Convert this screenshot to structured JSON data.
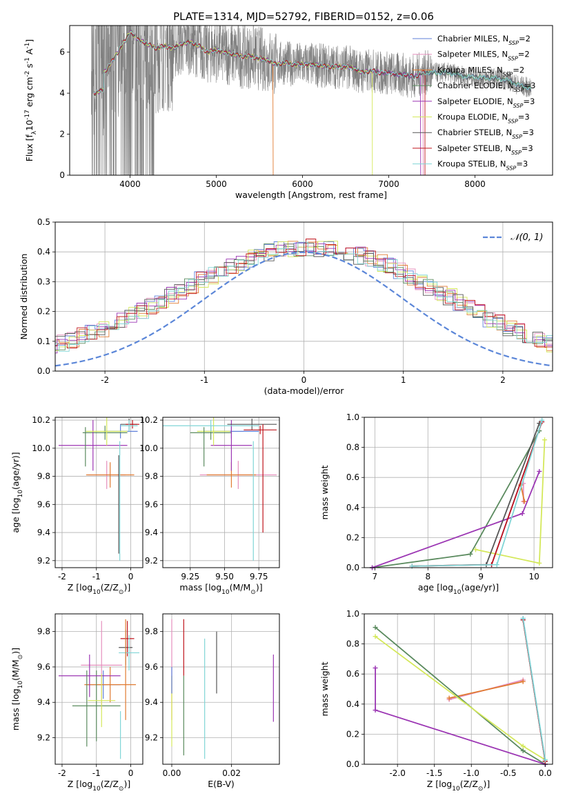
{
  "figure": {
    "title": "PLATE=1314, MJD=52792, FIBERID=0152, z=0.06"
  },
  "models": [
    {
      "name": "Chabrier MILES, N$_{SSP}$=2",
      "label": "Chabrier MILES, N",
      "sub": "SSP",
      "n": "=2",
      "color": "#5e7fd9"
    },
    {
      "name": "Salpeter MILES, N$_{SSP}$=2",
      "label": "Salpeter MILES, N",
      "sub": "SSP",
      "n": "=2",
      "color": "#e58fbd"
    },
    {
      "name": "Kroupa MILES, N$_{SSP}$=2",
      "label": "Kroupa MILES, N",
      "sub": "SSP",
      "n": "=2",
      "color": "#e07a30"
    },
    {
      "name": "Chabrier ELODIE, N$_{SSP}$=3",
      "label": "Chabrier ELODIE, N",
      "sub": "SSP",
      "n": "=3",
      "color": "#5a8a5e"
    },
    {
      "name": "Salpeter ELODIE, N$_{SSP}$=3",
      "label": "Salpeter ELODIE, N",
      "sub": "SSP",
      "n": "=3",
      "color": "#9b35b3"
    },
    {
      "name": "Kroupa ELODIE, N$_{SSP}$=3",
      "label": "Kroupa ELODIE, N",
      "sub": "SSP",
      "n": "=3",
      "color": "#d4e85a"
    },
    {
      "name": "Chabrier STELIB, N$_{SSP}$=3",
      "label": "Chabrier STELIB, N",
      "sub": "SSP",
      "n": "=3",
      "color": "#555555"
    },
    {
      "name": "Salpeter STELIB, N$_{SSP}$=3",
      "label": "Salpeter STELIB, N",
      "sub": "SSP",
      "n": "=3",
      "color": "#c0141c"
    },
    {
      "name": "Kroupa STELIB, N$_{SSP}$=3",
      "label": "Kroupa STELIB, N",
      "sub": "SSP",
      "n": "=3",
      "color": "#7fd5d6"
    }
  ],
  "chart_data": [
    {
      "id": "spectrum",
      "type": "line",
      "xlabel": "wavelength [Angstrom, rest frame]",
      "ylabel": "Flux [f$_\\lambda$10$^{-17}$ erg cm$^{-2}$ s$^{-1}$ A$^{-1}$]",
      "xlim": [
        3300,
        8900
      ],
      "ylim": [
        0,
        7.3
      ],
      "xticks": [
        4000,
        5000,
        6000,
        7000,
        8000
      ],
      "yticks": [
        0,
        2,
        4,
        6
      ],
      "data_color": "#808080",
      "continuum": [
        [
          3600,
          4.8
        ],
        [
          3700,
          5.0
        ],
        [
          3800,
          5.6
        ],
        [
          3900,
          6.3
        ],
        [
          3950,
          6.6
        ],
        [
          4000,
          7.0
        ],
        [
          4100,
          6.6
        ],
        [
          4200,
          6.4
        ],
        [
          4300,
          6.2
        ],
        [
          4400,
          6.3
        ],
        [
          4500,
          6.2
        ],
        [
          4600,
          6.4
        ],
        [
          4700,
          6.5
        ],
        [
          4800,
          6.3
        ],
        [
          4900,
          6.0
        ],
        [
          5000,
          6.1
        ],
        [
          5100,
          6.0
        ],
        [
          5200,
          5.9
        ],
        [
          5300,
          5.8
        ],
        [
          5400,
          5.8
        ],
        [
          5500,
          5.7
        ],
        [
          5600,
          5.6
        ],
        [
          5700,
          5.4
        ],
        [
          5800,
          5.5
        ],
        [
          5900,
          5.4
        ],
        [
          6000,
          5.4
        ],
        [
          6100,
          5.4
        ],
        [
          6200,
          5.35
        ],
        [
          6300,
          5.3
        ],
        [
          6400,
          5.3
        ],
        [
          6500,
          5.3
        ],
        [
          6600,
          5.2
        ],
        [
          6700,
          5.0
        ],
        [
          6800,
          5.1
        ],
        [
          6900,
          5.0
        ],
        [
          7000,
          5.0
        ],
        [
          7100,
          4.9
        ],
        [
          7200,
          4.9
        ],
        [
          7300,
          4.8
        ],
        [
          7400,
          5.0
        ],
        [
          7500,
          5.0
        ],
        [
          7600,
          5.0
        ],
        [
          7700,
          5.0
        ],
        [
          7800,
          4.9
        ],
        [
          7900,
          4.8
        ],
        [
          8000,
          4.8
        ],
        [
          8100,
          4.75
        ],
        [
          8200,
          4.75
        ],
        [
          8300,
          4.7
        ],
        [
          8400,
          4.6
        ],
        [
          8500,
          4.4
        ],
        [
          8600,
          4.3
        ],
        [
          8650,
          4.2
        ]
      ],
      "legend_loc": "right"
    },
    {
      "id": "residuals",
      "type": "line",
      "xlabel": "(data-model)/error",
      "ylabel": "Normed distribution",
      "xlim": [
        -2.5,
        2.5
      ],
      "ylim": [
        0,
        0.5
      ],
      "xticks": [
        -2,
        -1,
        0,
        1,
        2
      ],
      "yticks": [
        0.0,
        0.1,
        0.2,
        0.3,
        0.4,
        0.5
      ],
      "grid": true,
      "reference": {
        "name": "$\\mathcal{N}(0,1)$",
        "label": "𝒩(0, 1)",
        "color": "#5b86d8"
      },
      "bin_width": 0.1,
      "histogram_base": [
        0.018,
        0.025,
        0.032,
        0.04,
        0.048,
        0.055,
        0.063,
        0.072,
        0.082,
        0.092,
        0.104,
        0.116,
        0.128,
        0.142,
        0.156,
        0.171,
        0.187,
        0.203,
        0.22,
        0.237,
        0.254,
        0.271,
        0.288,
        0.305,
        0.322,
        0.337,
        0.352,
        0.366,
        0.378,
        0.389,
        0.398,
        0.405,
        0.41,
        0.412,
        0.414,
        0.413,
        0.41,
        0.404,
        0.397,
        0.388,
        0.377,
        0.364,
        0.35,
        0.335,
        0.318,
        0.301,
        0.283,
        0.265,
        0.247,
        0.229,
        0.211,
        0.194,
        0.177,
        0.161,
        0.146,
        0.131,
        0.117,
        0.104,
        0.092,
        0.081,
        0.071,
        0.061,
        0.052,
        0.044,
        0.037,
        0.031,
        0.025,
        0.02
      ],
      "legend_loc": "upper right"
    },
    {
      "id": "age-vs-Z",
      "type": "scatter",
      "xlabel": "Z [log$_{10}$(Z/Z$_\\odot$)]",
      "ylabel": "age  [log$_{10}$(age/yr)]",
      "xlim": [
        -2.2,
        0.35
      ],
      "ylim": [
        9.15,
        10.22
      ],
      "xticks": [
        -2,
        -1,
        0
      ],
      "yticks": [
        9.2,
        9.4,
        9.6,
        9.8,
        10.0,
        10.2
      ],
      "grid": true,
      "points": [
        {
          "m": 0,
          "x": -0.3,
          "y": 10.12,
          "xerr": 0.5,
          "yerr": 0.05
        },
        {
          "m": 1,
          "x": -0.7,
          "y": 9.81,
          "xerr": 0.55,
          "yerr": 0.1
        },
        {
          "m": 2,
          "x": -0.6,
          "y": 9.81,
          "xerr": 0.7,
          "yerr": 0.09
        },
        {
          "m": 3,
          "x": -0.75,
          "y": 10.11,
          "xerr": 0.65,
          "yerr": 0.05
        },
        {
          "m": 4,
          "x": -1.1,
          "y": 10.02,
          "xerr": 1.0,
          "yerr": 0.18
        },
        {
          "m": 5,
          "x": -0.7,
          "y": 10.12,
          "xerr": 0.6,
          "yerr": 0.1
        },
        {
          "m": 6,
          "x": -0.05,
          "y": 10.17,
          "xerr": 0.25,
          "yerr": 0.04
        },
        {
          "m": 7,
          "x": 0.05,
          "y": 10.17,
          "xerr": 0.2,
          "yerr": 0.03
        },
        {
          "m": 8,
          "x": -0.05,
          "y": 10.16,
          "xerr": 0.25,
          "yerr": 0.04
        }
      ],
      "vlines": [
        {
          "m": 8,
          "x": -0.32,
          "y0": 9.2,
          "y1": 10.05
        },
        {
          "m": 3,
          "x": -1.32,
          "y0": 9.87,
          "y1": 10.15
        },
        {
          "m": 6,
          "x": -0.35,
          "y0": 9.25,
          "y1": 9.95
        }
      ]
    },
    {
      "id": "age-vs-mass",
      "type": "scatter",
      "xlabel": "mass [log$_{10}$(M/M$_\\odot$)]",
      "ylabel": "",
      "xlim": [
        9.05,
        9.9
      ],
      "ylim": [
        9.15,
        10.22
      ],
      "xticks": [
        9.25,
        9.5,
        9.75
      ],
      "yticks": [
        9.2,
        9.4,
        9.6,
        9.8,
        10.0,
        10.2
      ],
      "grid": true,
      "points": [
        {
          "m": 0,
          "x": 9.55,
          "y": 10.12,
          "xerr": 0.2,
          "yerr": 0.05
        },
        {
          "m": 1,
          "x": 9.6,
          "y": 9.81,
          "xerr": 0.28,
          "yerr": 0.1
        },
        {
          "m": 2,
          "x": 9.55,
          "y": 9.81,
          "xerr": 0.18,
          "yerr": 0.09
        },
        {
          "m": 3,
          "x": 9.4,
          "y": 10.11,
          "xerr": 0.15,
          "yerr": 0.05
        },
        {
          "m": 4,
          "x": 9.55,
          "y": 10.02,
          "xerr": 0.15,
          "yerr": 0.18
        },
        {
          "m": 5,
          "x": 9.42,
          "y": 10.12,
          "xerr": 0.12,
          "yerr": 0.1
        },
        {
          "m": 6,
          "x": 9.7,
          "y": 10.17,
          "xerr": 0.18,
          "yerr": 0.04
        },
        {
          "m": 7,
          "x": 9.76,
          "y": 10.13,
          "xerr": 0.12,
          "yerr": 0.03
        },
        {
          "m": 8,
          "x": 9.4,
          "y": 10.16,
          "xerr": 0.35,
          "yerr": 0.04
        }
      ],
      "vlines": [
        {
          "m": 7,
          "x": 9.78,
          "y0": 9.4,
          "y1": 10.17
        },
        {
          "m": 8,
          "x": 9.71,
          "y0": 9.2,
          "y1": 10.05
        },
        {
          "m": 3,
          "x": 9.35,
          "y0": 9.87,
          "y1": 10.15
        }
      ]
    },
    {
      "id": "weight-vs-age",
      "type": "line",
      "xlabel": "age  [log$_{10}$(age/yr)]",
      "ylabel": "mass weight",
      "xlim": [
        6.8,
        10.35
      ],
      "ylim": [
        0.0,
        1.0
      ],
      "xticks": [
        7,
        8,
        9,
        10
      ],
      "yticks": [
        0.0,
        0.2,
        0.4,
        0.6,
        0.8,
        1.0
      ],
      "grid": true,
      "series": [
        {
          "m": 0,
          "points": [
            [
              9.2,
              0.02
            ],
            [
              10.15,
              0.97
            ]
          ]
        },
        {
          "m": 1,
          "points": [
            [
              9.8,
              0.44
            ],
            [
              9.8,
              0.56
            ]
          ]
        },
        {
          "m": 2,
          "points": [
            [
              9.75,
              0.55
            ],
            [
              9.82,
              0.44
            ]
          ]
        },
        {
          "m": 3,
          "points": [
            [
              6.95,
              0.0
            ],
            [
              8.8,
              0.09
            ],
            [
              10.1,
              0.91
            ]
          ]
        },
        {
          "m": 4,
          "points": [
            [
              6.95,
              0.0
            ],
            [
              9.78,
              0.36
            ],
            [
              10.1,
              0.64
            ]
          ]
        },
        {
          "m": 5,
          "points": [
            [
              8.9,
              0.12
            ],
            [
              10.1,
              0.03
            ],
            [
              10.2,
              0.85
            ]
          ]
        },
        {
          "m": 6,
          "points": [
            [
              7.7,
              0.01
            ],
            [
              9.1,
              0.02
            ],
            [
              10.1,
              0.96
            ]
          ]
        },
        {
          "m": 7,
          "points": [
            [
              7.7,
              0.01
            ],
            [
              9.2,
              0.02
            ],
            [
              10.15,
              0.97
            ]
          ]
        },
        {
          "m": 8,
          "points": [
            [
              7.7,
              0.01
            ],
            [
              9.3,
              0.02
            ],
            [
              10.15,
              0.98
            ]
          ]
        }
      ]
    },
    {
      "id": "mass-vs-Z",
      "type": "scatter",
      "xlabel": "Z [log$_{10}$(Z/Z$_\\odot$)]",
      "ylabel": "mass [log$_{10}$(M/M$_\\odot$)]",
      "xlim": [
        -2.2,
        0.35
      ],
      "ylim": [
        9.05,
        9.9
      ],
      "xticks": [
        -2,
        -1,
        0
      ],
      "yticks": [
        9.2,
        9.4,
        9.6,
        9.8
      ],
      "grid": true,
      "points": [
        {
          "m": 0,
          "x": -0.8,
          "y": 9.5,
          "xerr": 0.5,
          "yerr": 0.08
        },
        {
          "m": 1,
          "x": -0.85,
          "y": 9.61,
          "xerr": 0.6,
          "yerr": 0.25
        },
        {
          "m": 2,
          "x": -0.6,
          "y": 9.5,
          "xerr": 0.75,
          "yerr": 0.1
        },
        {
          "m": 3,
          "x": -1.0,
          "y": 9.38,
          "xerr": 0.7,
          "yerr": 0.2
        },
        {
          "m": 4,
          "x": -1.2,
          "y": 9.55,
          "xerr": 0.9,
          "yerr": 0.12
        },
        {
          "m": 5,
          "x": -0.85,
          "y": 9.41,
          "xerr": 0.4,
          "yerr": 0.15
        },
        {
          "m": 6,
          "x": -0.15,
          "y": 9.71,
          "xerr": 0.2,
          "yerr": 0.1
        },
        {
          "m": 7,
          "x": -0.1,
          "y": 9.76,
          "xerr": 0.2,
          "yerr": 0.1
        },
        {
          "m": 8,
          "x": -0.05,
          "y": 9.68,
          "xerr": 0.3,
          "yerr": 0.1
        }
      ],
      "vlines": [
        {
          "m": 2,
          "x": -0.15,
          "y0": 9.3,
          "y1": 9.87
        },
        {
          "m": 3,
          "x": -1.28,
          "y0": 9.15,
          "y1": 9.58
        },
        {
          "m": 8,
          "x": -0.3,
          "y0": 9.08,
          "y1": 9.35
        }
      ]
    },
    {
      "id": "mass-vs-EBV",
      "type": "scatter",
      "xlabel": "E(B-V)",
      "ylabel": "",
      "xlim": [
        -0.003,
        0.036
      ],
      "ylim": [
        9.05,
        9.9
      ],
      "xticks": [
        0.0,
        0.02
      ],
      "yticks": [
        9.2,
        9.4,
        9.6,
        9.8
      ],
      "grid": true,
      "vlines": [
        {
          "m": 1,
          "x": 0.0,
          "y0": 9.55,
          "y1": 9.87
        },
        {
          "m": 2,
          "x": 0.0,
          "y0": 9.3,
          "y1": 9.55
        },
        {
          "m": 5,
          "x": 0.0,
          "y0": 9.15,
          "y1": 9.55
        },
        {
          "m": 0,
          "x": 0.0,
          "y0": 9.45,
          "y1": 9.6
        },
        {
          "m": 7,
          "x": 0.004,
          "y0": 9.55,
          "y1": 9.87
        },
        {
          "m": 3,
          "x": 0.004,
          "y0": 9.1,
          "y1": 9.55
        },
        {
          "m": 8,
          "x": 0.011,
          "y0": 9.08,
          "y1": 9.76
        },
        {
          "m": 6,
          "x": 0.015,
          "y0": 9.45,
          "y1": 9.8
        },
        {
          "m": 4,
          "x": 0.034,
          "y0": 9.29,
          "y1": 9.67
        }
      ]
    },
    {
      "id": "weight-vs-Z",
      "type": "line",
      "xlabel": "Z [log$_{10}$(Z/Z$_\\odot$)]",
      "ylabel": "mass weight",
      "xlim": [
        -2.45,
        0.1
      ],
      "ylim": [
        0.0,
        1.0
      ],
      "xticks": [
        -2.0,
        -1.5,
        -1.0,
        -0.5,
        0.0
      ],
      "yticks": [
        0.0,
        0.2,
        0.4,
        0.6,
        0.8,
        1.0
      ],
      "grid": true,
      "series": [
        {
          "m": 0,
          "points": [
            [
              -0.3,
              0.97
            ],
            [
              0.0,
              0.02
            ]
          ]
        },
        {
          "m": 1,
          "points": [
            [
              -1.3,
              0.43
            ],
            [
              -0.3,
              0.56
            ]
          ]
        },
        {
          "m": 2,
          "points": [
            [
              -1.3,
              0.44
            ],
            [
              -0.3,
              0.55
            ]
          ]
        },
        {
          "m": 3,
          "points": [
            [
              -2.3,
              0.91
            ],
            [
              -0.3,
              0.09
            ],
            [
              0.0,
              0.0
            ]
          ]
        },
        {
          "m": 4,
          "points": [
            [
              -2.3,
              0.64
            ],
            [
              -2.3,
              0.36
            ],
            [
              0.0,
              0.0
            ]
          ]
        },
        {
          "m": 5,
          "points": [
            [
              -2.3,
              0.85
            ],
            [
              -0.3,
              0.12
            ],
            [
              0.0,
              0.03
            ]
          ]
        },
        {
          "m": 6,
          "points": [
            [
              -0.3,
              0.96
            ],
            [
              0.0,
              0.02
            ]
          ]
        },
        {
          "m": 7,
          "points": [
            [
              -0.3,
              0.96
            ],
            [
              0.0,
              0.02
            ]
          ]
        },
        {
          "m": 8,
          "points": [
            [
              -0.3,
              0.97
            ],
            [
              0.0,
              0.03
            ]
          ]
        }
      ]
    }
  ]
}
